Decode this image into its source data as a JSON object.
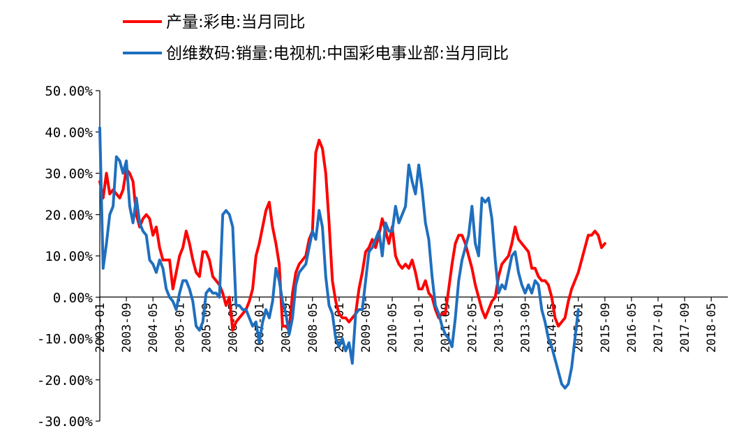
{
  "chart_data": {
    "type": "line",
    "title": "",
    "xlabel": "",
    "ylabel": "",
    "ylim": [
      -30,
      50
    ],
    "y_tick_values": [
      50,
      40,
      30,
      20,
      10,
      0,
      -10,
      -20,
      -30
    ],
    "y_tick_labels": [
      "50.00%",
      "40.00%",
      "30.00%",
      "20.00%",
      "10.00%",
      "0.00%",
      "-10.00%",
      "-20.00%",
      "-30.00%"
    ],
    "x_tick_labels": [
      "2003-01",
      "2003-09",
      "2004-05",
      "2005-01",
      "2005-09",
      "2006-05",
      "2007-01",
      "2007-09",
      "2008-05",
      "2009-01",
      "2009-09",
      "2010-05",
      "2011-01",
      "2011-09",
      "2012-05",
      "2013-01",
      "2013-09",
      "2014-05",
      "2015-01",
      "2015-09",
      "2016-05",
      "2017-01",
      "2017-09",
      "2018-05"
    ],
    "x_start": "2003-01",
    "x_end": "2018-10",
    "grid": false,
    "legend_position": "top-left",
    "series": [
      {
        "name": "产量:彩电:当月同比",
        "color": "#ff0000",
        "start": "2003-01",
        "values": [
          28,
          24,
          30,
          25,
          26,
          25,
          24,
          26,
          31,
          30,
          28,
          20,
          17,
          19,
          20,
          19,
          15,
          17,
          12,
          9,
          9,
          9,
          2,
          6,
          10,
          12,
          16,
          13,
          9,
          6,
          5,
          11,
          11,
          9,
          5,
          4,
          3,
          1,
          -2,
          0,
          -8,
          -6,
          -5,
          -4,
          -3,
          -1,
          2,
          10,
          13,
          17,
          21,
          23,
          17,
          13,
          8,
          -7,
          -7,
          -8,
          1,
          6,
          8,
          9,
          10,
          14,
          16,
          35,
          38,
          36,
          30,
          18,
          4,
          -1,
          -4,
          -5,
          -5,
          -6,
          -5,
          -4,
          2,
          6,
          11,
          12,
          14,
          12,
          15,
          19,
          16,
          13,
          17,
          10,
          8,
          7,
          8,
          7,
          9,
          6,
          2,
          2,
          4,
          1,
          0,
          -3,
          -5,
          -4,
          -4,
          2,
          8,
          13,
          15,
          15,
          13,
          10,
          7,
          3,
          0,
          -3,
          -5,
          -3,
          -1,
          0,
          5,
          8,
          9,
          10,
          13,
          17,
          14,
          13,
          12,
          11,
          7,
          7,
          5,
          4,
          4,
          3,
          0,
          -5,
          -7,
          -6,
          -5,
          -1,
          2,
          4,
          6,
          9,
          12,
          15,
          15,
          16,
          15,
          12,
          13
        ]
      },
      {
        "name": "创维数码:销量:电视机:中国彩电事业部:当月同比",
        "color": "#1f6fbf",
        "start": "2003-01",
        "values": [
          41,
          7,
          13,
          20,
          22,
          34,
          33,
          30,
          33,
          22,
          18,
          24,
          18,
          16,
          15,
          9,
          8,
          6,
          9,
          7,
          2,
          0,
          -1,
          -3,
          1,
          4,
          4,
          2,
          -1,
          -7,
          -8,
          -6,
          1,
          2,
          1,
          1,
          0,
          20,
          21,
          20,
          17,
          -2,
          -2,
          -3,
          -3,
          -5,
          -7,
          -6,
          -11,
          -6,
          -3,
          -5,
          -1,
          7,
          4,
          -1,
          -4,
          -9,
          -5,
          3,
          6,
          7,
          8,
          12,
          16,
          14,
          21,
          17,
          5,
          -2,
          -4,
          -10,
          -12,
          -10,
          -13,
          -11,
          -16,
          -4,
          -3,
          -3,
          4,
          11,
          12,
          14,
          16,
          10,
          18,
          16,
          16,
          22,
          18,
          20,
          22,
          32,
          28,
          25,
          32,
          26,
          18,
          14,
          5,
          -2,
          -4,
          -7,
          -9,
          -10,
          -12,
          -5,
          4,
          9,
          12,
          15,
          22,
          13,
          10,
          24,
          23,
          24,
          19,
          9,
          1,
          3,
          2,
          6,
          10,
          11,
          6,
          3,
          1,
          3,
          1,
          4,
          3,
          -3,
          -6,
          -10,
          -12,
          -15,
          -18,
          -21,
          -22,
          -21,
          -17,
          -10,
          -3
        ]
      }
    ]
  }
}
